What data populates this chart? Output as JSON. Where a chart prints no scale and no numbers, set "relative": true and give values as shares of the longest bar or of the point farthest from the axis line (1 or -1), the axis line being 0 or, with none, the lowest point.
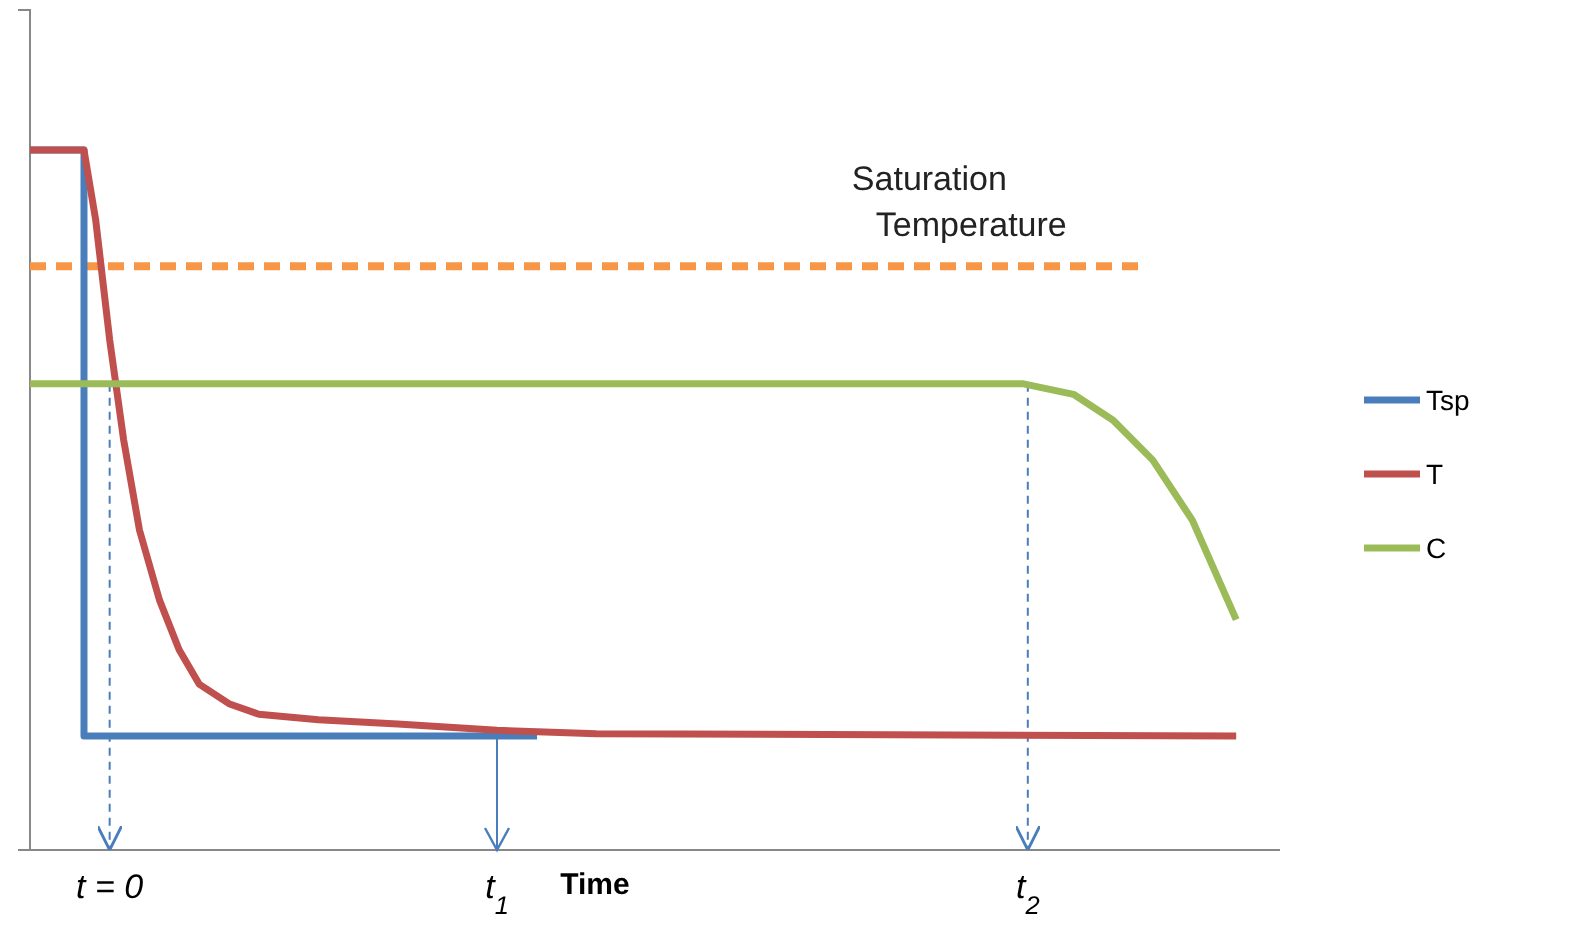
{
  "chart_data": {
    "type": "line",
    "relative": true,
    "xlabel": "Time",
    "xlim": [
      -0.211,
      3.1
    ],
    "xticks": [
      {
        "value": 0,
        "label": "t = 0"
      },
      {
        "value": 1.026,
        "label": "t$_{1}$"
      },
      {
        "value": 2.432,
        "label": "t$_{2}$"
      }
    ],
    "series": [
      {
        "name": "Tsp",
        "color": "#4a7ebb",
        "x": [
          -0.211,
          -0.068,
          -0.068,
          1.132
        ],
        "values": [
          1,
          1,
          0.163,
          0.163
        ]
      },
      {
        "name": "T",
        "color": "#c0504d",
        "x": [
          -0.211,
          -0.068,
          -0.037,
          0,
          0.037,
          0.079,
          0.132,
          0.184,
          0.237,
          0.316,
          0.395,
          0.553,
          0.763,
          1.026,
          1.289,
          2.984
        ],
        "values": [
          1,
          1,
          0.9,
          0.729,
          0.586,
          0.457,
          0.357,
          0.286,
          0.237,
          0.209,
          0.194,
          0.186,
          0.18,
          0.171,
          0.166,
          0.163
        ]
      },
      {
        "name": "C",
        "color": "#9bbb59",
        "x": [
          -0.211,
          2.421,
          2.553,
          2.658,
          2.763,
          2.868,
          2.984
        ],
        "values": [
          0.666,
          0.666,
          0.651,
          0.614,
          0.557,
          0.471,
          0.329
        ]
      }
    ],
    "ref_lines": [
      {
        "axis": "y",
        "value": 0.834,
        "label": "Saturation Temperature",
        "color": "#f79646",
        "line_style": "dashed"
      },
      {
        "axis": "x",
        "value": 0,
        "label": null,
        "color": "#4a7ebb",
        "line_style": "dashed"
      },
      {
        "axis": "x",
        "value": 2.432,
        "label": null,
        "color": "#4a7ebb",
        "line_style": "dashed"
      }
    ],
    "legend": "right",
    "line_style": "solid",
    "marker": "none"
  }
}
